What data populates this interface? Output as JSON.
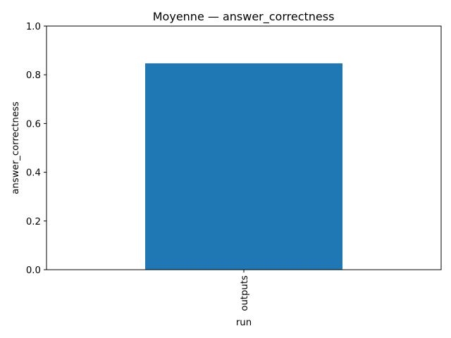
{
  "chart_data": {
    "type": "bar",
    "title": "Moyenne — answer_correctness",
    "xlabel": "run",
    "ylabel": "answer_correctness",
    "categories": [
      "outputs"
    ],
    "values": [
      0.847
    ],
    "ylim": [
      0,
      1
    ],
    "yticks": [
      "0.0",
      "0.2",
      "0.4",
      "0.6",
      "0.8",
      "1.0"
    ],
    "grid": false,
    "bar_color": "#1f77b4"
  }
}
